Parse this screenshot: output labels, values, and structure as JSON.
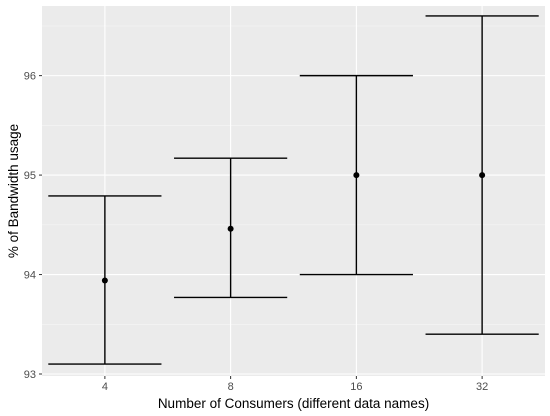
{
  "chart_data": {
    "type": "errorbar",
    "xlabel": "Number of Consumers (different data names)",
    "ylabel": "% of Bandwidth usage",
    "categories": [
      "4",
      "8",
      "16",
      "32"
    ],
    "series": [
      {
        "mean": [
          93.94,
          94.46,
          95.0,
          95.0
        ],
        "lower": [
          93.1,
          93.77,
          94.0,
          93.4
        ],
        "upper": [
          94.79,
          95.17,
          96.0,
          96.6
        ]
      }
    ],
    "ylim": [
      92.98,
      96.7
    ],
    "yticks": [
      93,
      94,
      95,
      96
    ],
    "grid": true,
    "colors": {
      "panel_background": "#ebebeb",
      "grid_major": "#ffffff",
      "grid_minor": "#f5f5f5",
      "marks": "#000000"
    }
  }
}
